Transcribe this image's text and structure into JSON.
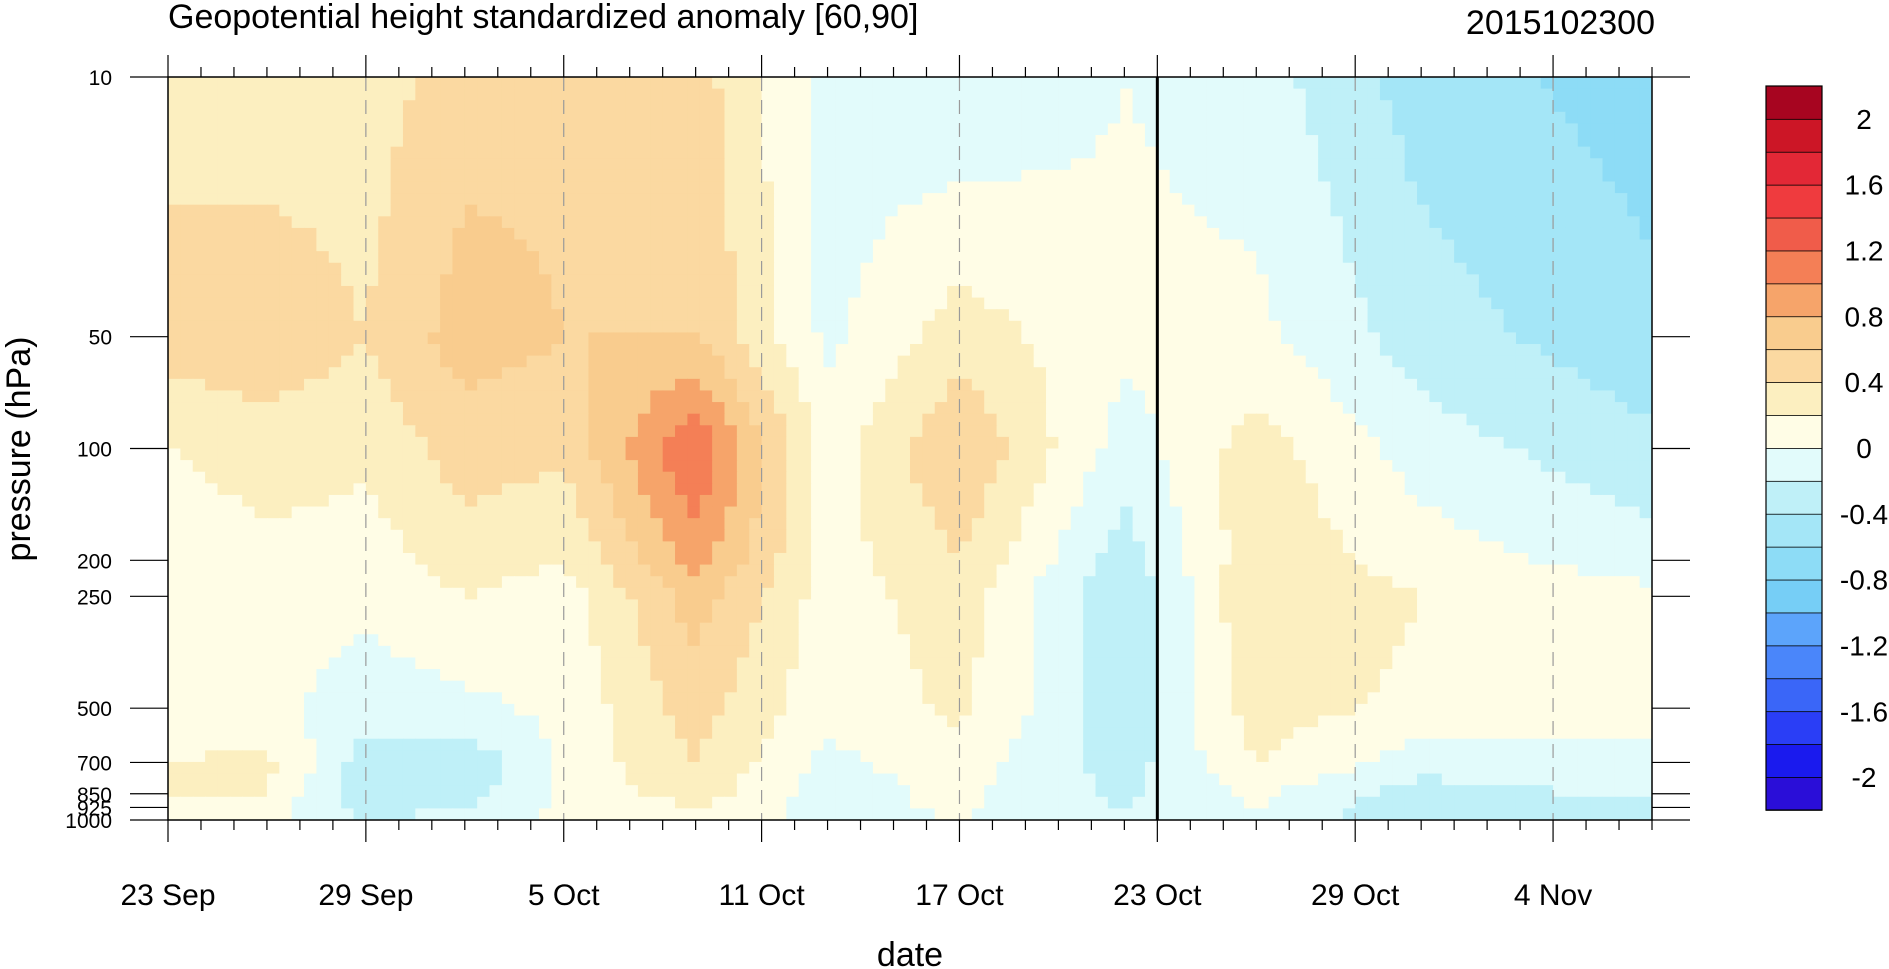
{
  "chart_data": {
    "type": "heatmap",
    "subtype": "filled-contour (time-pressure Hovmoller)",
    "title": "Geopotential height standardized anomaly [60,90]",
    "right_title": "2015102300",
    "xlabel": "date",
    "ylabel": "pressure (hPa)",
    "x_tick_labels": [
      "23 Sep",
      "29 Sep",
      "5 Oct",
      "11 Oct",
      "17 Oct",
      "23 Oct",
      "29 Oct",
      "4 Nov"
    ],
    "x_ticks_day": [
      0,
      6,
      12,
      18,
      24,
      30,
      36,
      42
    ],
    "xlim_day": [
      0,
      45
    ],
    "y_ticks": [
      10,
      50,
      100,
      200,
      250,
      500,
      700,
      850,
      925,
      1000
    ],
    "y_tick_labels": [
      "10",
      "50",
      "100",
      "200",
      "250",
      "500",
      "700",
      "850",
      "925",
      "1000"
    ],
    "ylim": [
      1000,
      10
    ],
    "y_scale": "log",
    "current_date_line": "23 Oct",
    "colorbar": {
      "labels": [
        "2",
        "1.6",
        "1.2",
        "0.8",
        "0.4",
        "0",
        "-0.4",
        "-0.8",
        "-1.2",
        "-1.6",
        "-2"
      ],
      "label_values": [
        2,
        1.6,
        1.2,
        0.8,
        0.4,
        0,
        -0.4,
        -0.8,
        -1.2,
        -1.6,
        -2
      ],
      "levels": [
        -2.2,
        -2,
        -1.8,
        -1.6,
        -1.4,
        -1.2,
        -1,
        -0.8,
        -0.6,
        -0.4,
        -0.2,
        0,
        0.2,
        0.4,
        0.6,
        0.8,
        1,
        1.2,
        1.4,
        1.6,
        1.8,
        2,
        2.2
      ],
      "colors_bottom_to_top": [
        "#2a0ed8",
        "#1a1aee",
        "#2a3ef6",
        "#3a66f8",
        "#4a86fa",
        "#5ca4fb",
        "#76cef6",
        "#8ddcf6",
        "#a4e6f7",
        "#bff0f8",
        "#e2fbfb",
        "#fffde6",
        "#fcefc0",
        "#fbd9a1",
        "#f9cc8e",
        "#f6a46a",
        "#f47f56",
        "#f05c4a",
        "#ef3b3e",
        "#e32836",
        "#cc1626",
        "#a70520"
      ]
    },
    "series": [
      {
        "name": "",
        "day": 0,
        "values": [
          0.3,
          0.5,
          0.2,
          0.05,
          0.05,
          0.05,
          0.2,
          0.2,
          0.1,
          0.1
        ]
      },
      {
        "name": "",
        "day": 3,
        "values": [
          0.25,
          0.55,
          0.3,
          0.15,
          0.1,
          0.05,
          0.25,
          0.2,
          0.1,
          0.1
        ]
      },
      {
        "name": "",
        "day": 6,
        "values": [
          0.3,
          0.4,
          0.25,
          0.1,
          0.05,
          -0.1,
          -0.3,
          -0.35,
          -0.3,
          -0.2
        ]
      },
      {
        "name": "",
        "day": 9,
        "values": [
          0.5,
          0.7,
          0.5,
          0.3,
          0.2,
          -0.05,
          -0.35,
          -0.3,
          -0.2,
          -0.1
        ]
      },
      {
        "name": "",
        "day": 12,
        "values": [
          0.55,
          0.6,
          0.45,
          0.2,
          0.1,
          0.05,
          0.05,
          0.05,
          0.05,
          0.05
        ]
      },
      {
        "name": "",
        "day": 16,
        "values": [
          0.5,
          0.6,
          1.2,
          0.9,
          0.7,
          0.5,
          0.4,
          0.3,
          0.2,
          0.2
        ]
      },
      {
        "name": "",
        "day": 20,
        "values": [
          -0.1,
          -0.05,
          0.1,
          0.1,
          0.1,
          0.05,
          -0.05,
          -0.1,
          -0.1,
          -0.1
        ]
      },
      {
        "name": "",
        "day": 24,
        "values": [
          -0.2,
          0.3,
          0.6,
          0.4,
          0.3,
          0.25,
          0.1,
          0.05,
          0.05,
          0.0
        ]
      },
      {
        "name": "",
        "day": 29,
        "values": [
          0.0,
          0.05,
          -0.1,
          -0.3,
          -0.4,
          -0.35,
          -0.3,
          -0.25,
          -0.2,
          -0.2
        ]
      },
      {
        "name": "",
        "day": 33,
        "values": [
          -0.1,
          0.05,
          0.3,
          0.35,
          0.4,
          0.3,
          0.2,
          0.05,
          0.0,
          0.0
        ]
      },
      {
        "name": "",
        "day": 38,
        "values": [
          -0.5,
          -0.3,
          -0.1,
          0.1,
          0.2,
          0.15,
          -0.1,
          -0.3,
          -0.4,
          -0.4
        ]
      },
      {
        "name": "",
        "day": 45,
        "values": [
          -0.7,
          -0.55,
          -0.35,
          -0.1,
          0.05,
          0.05,
          -0.05,
          -0.15,
          -0.3,
          -0.2
        ]
      }
    ]
  }
}
